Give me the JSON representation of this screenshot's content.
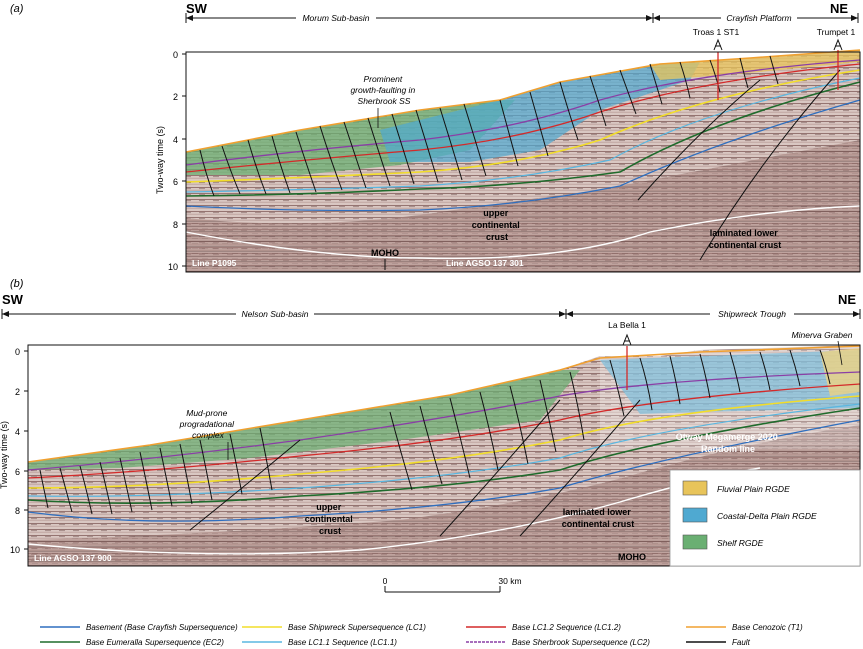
{
  "panel_a": {
    "letter": "(a)",
    "left_dir": "SW",
    "right_dir": "NE",
    "left_region": "Morum Sub-basin",
    "right_region": "Crayfish Platform",
    "well1": "Troas 1 ST1",
    "well2": "Trumpet 1",
    "annotation": [
      "Prominent",
      "growth-faulting in",
      "Sherbrook SS"
    ],
    "crust_upper": [
      "upper",
      "continental",
      "crust"
    ],
    "crust_lower": [
      "laminated lower",
      "continental crust"
    ],
    "moho": "MOHO",
    "line1": "Line P1095",
    "line2": "Line AGSO 137 301",
    "yaxis": "Two-way time (s)",
    "ticks": [
      "0",
      "2",
      "4",
      "6",
      "8",
      "10"
    ]
  },
  "panel_b": {
    "letter": "(b)",
    "left_dir": "SW",
    "right_dir": "NE",
    "left_region": "Nelson Sub-basin",
    "right_region": "Shipwreck Trough",
    "well1": "La Bella 1",
    "graben": "Minerva Graben",
    "annotation": [
      "Mud-prone",
      "progradational",
      "complex"
    ],
    "crust_upper": [
      "upper",
      "continental",
      "crust"
    ],
    "crust_lower": [
      "laminated lower",
      "continental crust"
    ],
    "moho": "MOHO",
    "line1": "Line AGSO 137 900",
    "random_line": [
      "Otway Megamerge 2020",
      "Random line"
    ],
    "yaxis": "Two-way time (s)",
    "ticks": [
      "0",
      "2",
      "4",
      "6",
      "8",
      "10"
    ]
  },
  "rgde_legend": [
    {
      "label": "Fluvial Plain RGDE",
      "color": "#e8c45a"
    },
    {
      "label": "Coastal-Delta Plain RGDE",
      "color": "#4fa9d1"
    },
    {
      "label": "Shelf RGDE",
      "color": "#6aaf72"
    }
  ],
  "scale": {
    "zero": "0",
    "end": "30 km"
  },
  "horizon_legend": [
    {
      "label": "Basement (Base Crayfish Supersequence)",
      "color": "#2f6fbf"
    },
    {
      "label": "Base Shipwreck Supersequence (LC1)",
      "color": "#f2dd2a"
    },
    {
      "label": "Base LC1.2 Sequence (LC1.2)",
      "color": "#d42a2a"
    },
    {
      "label": "Base Cenozoic (T1)",
      "color": "#f0a030"
    },
    {
      "label": "Base Eumeralla Supersequence (EC2)",
      "color": "#1f6b2c"
    },
    {
      "label": "Base LC1.1 Sequence (LC1.1)",
      "color": "#5ab7e0"
    },
    {
      "label": "Base Sherbrook Supersequence (LC2)",
      "color": "#8a3fa6"
    },
    {
      "label": "Fault",
      "color": "#111111"
    }
  ]
}
